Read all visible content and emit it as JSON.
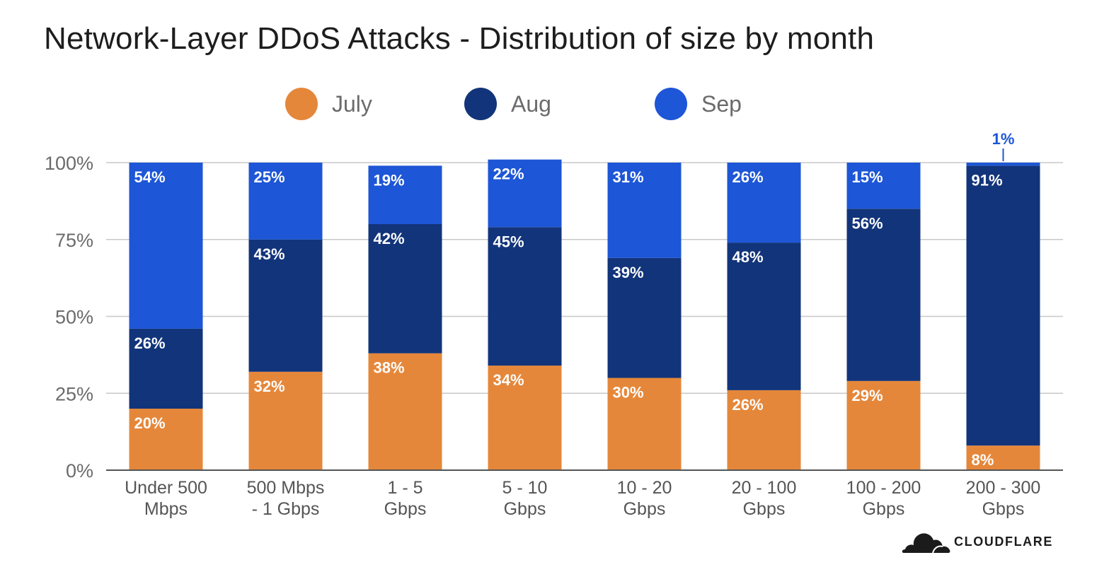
{
  "title": "Network-Layer DDoS Attacks - Distribution of size by month",
  "legend": [
    {
      "label": "July",
      "color": "#E5873A"
    },
    {
      "label": "Aug",
      "color": "#12347A"
    },
    {
      "label": "Sep",
      "color": "#1D56D6"
    }
  ],
  "logo": {
    "text": "CLOUDFLARE",
    "icon": "cloud-icon"
  },
  "chart_data": {
    "type": "bar",
    "stacked": true,
    "title": "Network-Layer DDoS Attacks - Distribution of size by month",
    "categories": [
      [
        "Under 500",
        "Mbps"
      ],
      [
        "500 Mbps",
        "- 1 Gbps"
      ],
      [
        "1 - 5",
        "Gbps"
      ],
      [
        "5 - 10",
        "Gbps"
      ],
      [
        "10 - 20",
        "Gbps"
      ],
      [
        "20 - 100",
        "Gbps"
      ],
      [
        "100 - 200",
        "Gbps"
      ],
      [
        "200 - 300",
        "Gbps"
      ]
    ],
    "series": [
      {
        "name": "July",
        "color": "#E5873A",
        "values": [
          20,
          32,
          38,
          34,
          30,
          26,
          29,
          8
        ]
      },
      {
        "name": "Aug",
        "color": "#12347A",
        "values": [
          26,
          43,
          42,
          45,
          39,
          48,
          56,
          91
        ]
      },
      {
        "name": "Sep",
        "color": "#1D56D6",
        "values": [
          54,
          25,
          19,
          22,
          31,
          26,
          15,
          1
        ]
      }
    ],
    "yticks": [
      "0%",
      "25%",
      "50%",
      "75%",
      "100%"
    ],
    "ylim": [
      0,
      100
    ],
    "grid": true,
    "legend_position": "top-center"
  }
}
